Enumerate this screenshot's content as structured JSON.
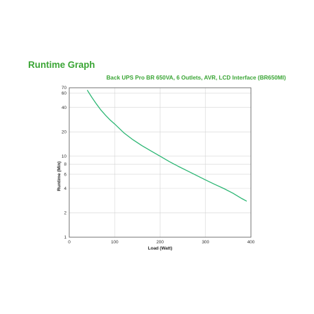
{
  "page": {
    "title": "Runtime Graph"
  },
  "chart_data": {
    "type": "line",
    "title": "Back UPS Pro BR 650VA, 6 Outlets, AVR, LCD Interface (BR650MI)",
    "xlabel": "Load (Watt)",
    "ylabel": "Runtime (Min)",
    "xlim": [
      0,
      400
    ],
    "ylim": [
      1,
      70
    ],
    "yscale": "log",
    "grid": true,
    "x_ticks": [
      0,
      100,
      200,
      300,
      400
    ],
    "x_tick_labels": [
      "0",
      "100",
      "200",
      "300",
      "400"
    ],
    "y_ticks": [
      1,
      2,
      4,
      6,
      8,
      10,
      20,
      40,
      60,
      70
    ],
    "y_tick_labels": [
      "1",
      "2",
      "4",
      "6",
      "8",
      "10",
      "20",
      "40",
      "60",
      "70"
    ],
    "line_color": "#2bb673",
    "series": [
      {
        "x": [
          40,
          50,
          60,
          70,
          80,
          90,
          100,
          120,
          140,
          160,
          180,
          200,
          220,
          240,
          260,
          280,
          300,
          320,
          340,
          360,
          380,
          390
        ],
        "values": [
          65,
          53,
          44,
          37,
          32,
          28,
          25,
          19.5,
          16,
          13.5,
          11.6,
          10,
          8.6,
          7.5,
          6.6,
          5.8,
          5.1,
          4.5,
          4.0,
          3.5,
          3.0,
          2.8
        ]
      }
    ]
  }
}
